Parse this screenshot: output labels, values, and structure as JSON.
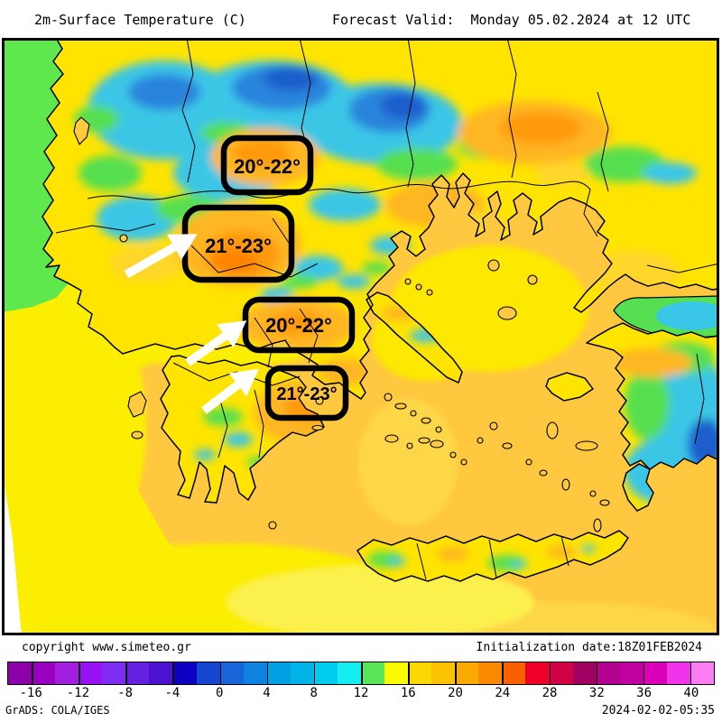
{
  "header": {
    "title": "2m-Surface Temperature (C)",
    "forecast_valid": "Forecast Valid:  Monday 05.02.2024 at 12 UTC"
  },
  "map": {
    "annotations": [
      {
        "label": "20°-22°"
      },
      {
        "label": "21°-23°"
      },
      {
        "label": "20°-22°"
      },
      {
        "label": "21°-23°"
      }
    ]
  },
  "footer": {
    "copyright": "copyright www.simeteo.gr",
    "initialization": "Initialization date:18Z01FEB2024",
    "grads_credit": "GrADS: COLA/IGES",
    "generated": "2024-02-02-05:35"
  },
  "colorbar": {
    "unit": "C",
    "min": -18,
    "max": 42,
    "step": 2,
    "tick_labels": [
      -16,
      -12,
      -8,
      -4,
      0,
      4,
      8,
      12,
      16,
      20,
      24,
      28,
      32,
      36,
      40
    ],
    "segment_colors": [
      "#8e00a8",
      "#9a00bf",
      "#a31fdf",
      "#9612f2",
      "#7e2cf0",
      "#6620e2",
      "#4c12d2",
      "#0e00c2",
      "#1546d0",
      "#1a64da",
      "#0e82e0",
      "#00a0e4",
      "#00b4e8",
      "#00ccee",
      "#14eef0",
      "#58e658",
      "#fafa00",
      "#fad800",
      "#fac200",
      "#faaa00",
      "#fa8800",
      "#fa6000",
      "#ee0028",
      "#d20046",
      "#a00060",
      "#b20090",
      "#c200a2",
      "#da00ba",
      "#f034ea",
      "#fc7cf4"
    ]
  }
}
